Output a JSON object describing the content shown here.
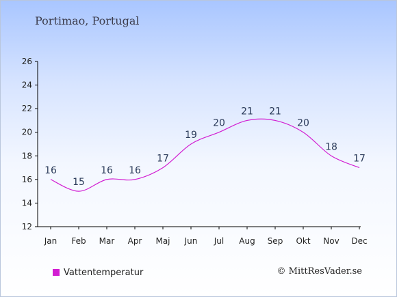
{
  "title": "Portimao, Portugal",
  "credit": "© MittResVader.se",
  "colors": {
    "series": "#d21ed2",
    "axis": "#000000",
    "text": "#222222"
  },
  "chart_data": {
    "type": "line",
    "title": "Portimao, Portugal",
    "xlabel": "",
    "ylabel": "",
    "categories": [
      "Jan",
      "Feb",
      "Mar",
      "Apr",
      "Maj",
      "Jun",
      "Jul",
      "Aug",
      "Sep",
      "Okt",
      "Nov",
      "Dec"
    ],
    "series": [
      {
        "name": "Vattentemperatur",
        "values": [
          16,
          15,
          16,
          16,
          17,
          19,
          20,
          21,
          21,
          20,
          18,
          17
        ]
      }
    ],
    "ylim": [
      12,
      26
    ],
    "yticks": [
      12,
      14,
      16,
      18,
      20,
      22,
      24,
      26
    ],
    "grid": false,
    "legend": "bottom-left"
  }
}
